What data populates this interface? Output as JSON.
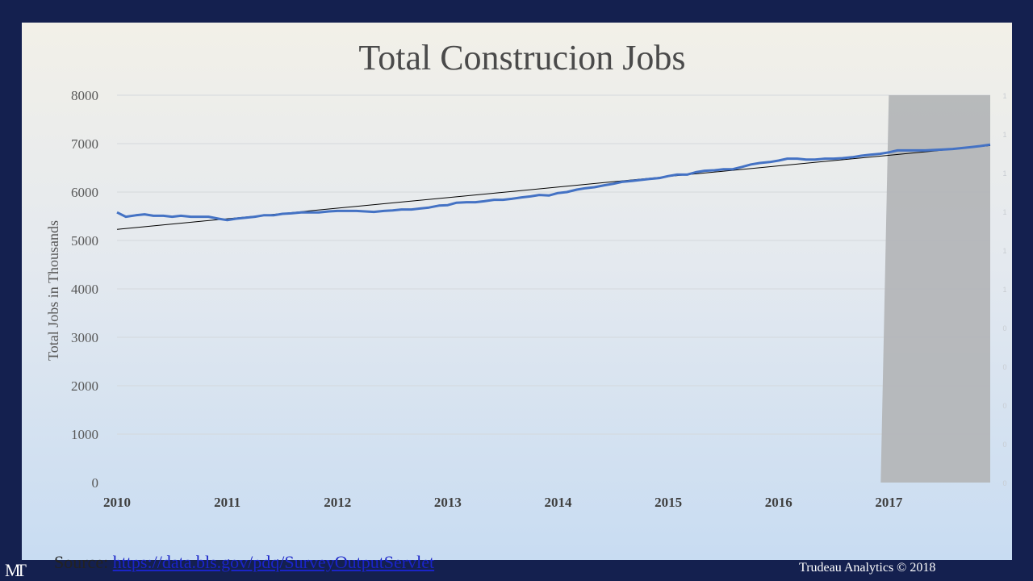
{
  "slide": {
    "source_label": "Source:",
    "source_link": "https://data.bls.gov/pdq/SurveyOutputServlet",
    "footer": "Trudeau Analytics © 2018",
    "logo": "MT"
  },
  "chart_data": {
    "type": "line",
    "title": "Total Construcion Jobs",
    "xlabel": "",
    "ylabel": "Total Jobs in Thousands",
    "ylim": [
      0,
      8000
    ],
    "xlim": [
      2010,
      2017.92
    ],
    "yticks": [
      "0",
      "1000",
      "2000",
      "3000",
      "4000",
      "5000",
      "6000",
      "7000",
      "8000"
    ],
    "xticks": [
      "2010",
      "2011",
      "2012",
      "2013",
      "2014",
      "2015",
      "2016",
      "2017"
    ],
    "right_axis_ticks": [
      "0",
      "0",
      "0",
      "0",
      "0",
      "1",
      "1",
      "1",
      "1",
      "1",
      "1"
    ],
    "grid": true,
    "legend": "none",
    "colors": {
      "series": "#4472c4",
      "trend": "#000000",
      "highlight": "#b4b6b8"
    },
    "highlight_band": {
      "x_start": 2017,
      "x_end": 2017.92,
      "y_top": 8000,
      "y_bottom": 0
    },
    "series": [
      {
        "x": [
          2010.0,
          2010.08,
          2010.17,
          2010.25,
          2010.33,
          2010.42,
          2010.5,
          2010.58,
          2010.67,
          2010.75,
          2010.83,
          2010.92,
          2011.0,
          2011.08,
          2011.17,
          2011.25,
          2011.33,
          2011.42,
          2011.5,
          2011.58,
          2011.67,
          2011.75,
          2011.83,
          2011.92,
          2012.0,
          2012.08,
          2012.17,
          2012.25,
          2012.33,
          2012.42,
          2012.5,
          2012.58,
          2012.67,
          2012.75,
          2012.83,
          2012.92,
          2013.0,
          2013.08,
          2013.17,
          2013.25,
          2013.33,
          2013.42,
          2013.5,
          2013.58,
          2013.67,
          2013.75,
          2013.83,
          2013.92,
          2014.0,
          2014.08,
          2014.17,
          2014.25,
          2014.33,
          2014.42,
          2014.5,
          2014.58,
          2014.67,
          2014.75,
          2014.83,
          2014.92,
          2015.0,
          2015.08,
          2015.17,
          2015.25,
          2015.33,
          2015.42,
          2015.5,
          2015.58,
          2015.67,
          2015.75,
          2015.83,
          2015.92,
          2016.0,
          2016.08,
          2016.17,
          2016.25,
          2016.33,
          2016.42,
          2016.5,
          2016.58,
          2016.67,
          2016.75,
          2016.83,
          2016.92,
          2017.0,
          2017.08,
          2017.17,
          2017.25,
          2017.33,
          2017.42,
          2017.5,
          2017.58,
          2017.67,
          2017.75,
          2017.83,
          2017.92
        ],
        "values": [
          5580,
          5490,
          5520,
          5540,
          5510,
          5510,
          5490,
          5510,
          5490,
          5490,
          5490,
          5450,
          5420,
          5450,
          5470,
          5490,
          5520,
          5520,
          5550,
          5560,
          5580,
          5580,
          5580,
          5600,
          5610,
          5610,
          5610,
          5600,
          5590,
          5610,
          5620,
          5640,
          5640,
          5660,
          5680,
          5720,
          5730,
          5780,
          5790,
          5790,
          5810,
          5840,
          5840,
          5860,
          5890,
          5910,
          5940,
          5930,
          5980,
          6000,
          6050,
          6080,
          6100,
          6140,
          6170,
          6210,
          6230,
          6250,
          6270,
          6290,
          6330,
          6360,
          6360,
          6410,
          6440,
          6450,
          6470,
          6470,
          6520,
          6570,
          6600,
          6620,
          6650,
          6690,
          6690,
          6670,
          6670,
          6690,
          6690,
          6700,
          6720,
          6750,
          6770,
          6790,
          6820,
          6860,
          6860,
          6860,
          6860,
          6870,
          6880,
          6890,
          6910,
          6930,
          6950,
          6980
        ]
      }
    ],
    "trendline": {
      "start": [
        2010,
        5230
      ],
      "end": [
        2017.92,
        6960
      ]
    }
  }
}
